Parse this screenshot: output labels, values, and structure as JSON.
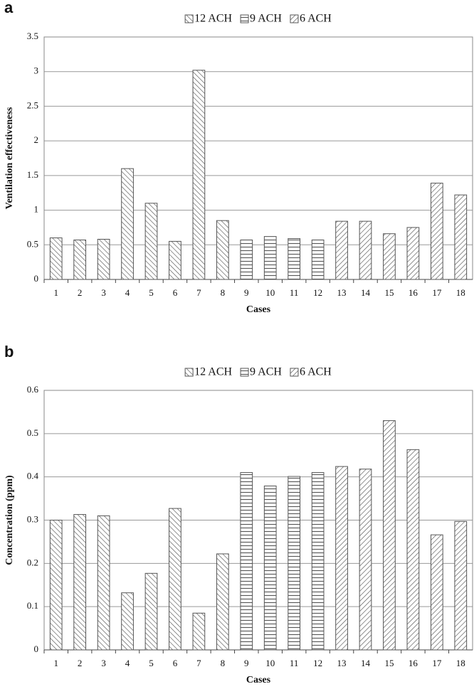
{
  "chart_data": [
    {
      "type": "bar",
      "panel_label": "a",
      "y_label": "Ventilation effectiveness",
      "x_label": "Cases",
      "categories": [
        "1",
        "2",
        "3",
        "4",
        "5",
        "6",
        "7",
        "8",
        "9",
        "10",
        "11",
        "12",
        "13",
        "14",
        "15",
        "16",
        "17",
        "18"
      ],
      "series": [
        {
          "name": "12 ACH",
          "color": "#555555",
          "hatch": "backslash",
          "values": [
            0.6,
            0.57,
            0.58,
            1.6,
            1.1,
            0.55,
            3.02,
            0.85,
            null,
            null,
            null,
            null,
            null,
            null,
            null,
            null,
            null,
            null
          ]
        },
        {
          "name": "9 ACH",
          "color": "#555555",
          "hatch": "horizontal",
          "values": [
            null,
            null,
            null,
            null,
            null,
            null,
            null,
            null,
            0.57,
            0.62,
            0.59,
            0.57,
            null,
            null,
            null,
            null,
            null,
            null
          ]
        },
        {
          "name": "6 ACH",
          "color": "#555555",
          "hatch": "slash",
          "values": [
            null,
            null,
            null,
            null,
            null,
            null,
            null,
            null,
            null,
            null,
            null,
            null,
            0.84,
            0.84,
            0.66,
            0.75,
            1.39,
            1.22
          ]
        }
      ],
      "ylim": [
        0,
        3.5
      ],
      "yticks": [
        0,
        0.5,
        1,
        1.5,
        2,
        2.5,
        3,
        3.5
      ],
      "grid": true,
      "legend": "top"
    },
    {
      "type": "bar",
      "panel_label": "b",
      "y_label": "Concentration (ppm)",
      "x_label": "Cases",
      "categories": [
        "1",
        "2",
        "3",
        "4",
        "5",
        "6",
        "7",
        "8",
        "9",
        "10",
        "11",
        "12",
        "13",
        "14",
        "15",
        "16",
        "17",
        "18"
      ],
      "series": [
        {
          "name": "12 ACH",
          "color": "#555555",
          "hatch": "backslash",
          "values": [
            0.3,
            0.313,
            0.31,
            0.132,
            0.177,
            0.327,
            0.085,
            0.222,
            null,
            null,
            null,
            null,
            null,
            null,
            null,
            null,
            null,
            null
          ]
        },
        {
          "name": "9 ACH",
          "color": "#555555",
          "hatch": "horizontal",
          "values": [
            null,
            null,
            null,
            null,
            null,
            null,
            null,
            null,
            0.41,
            0.379,
            0.401,
            0.41,
            null,
            null,
            null,
            null,
            null,
            null
          ]
        },
        {
          "name": "6 ACH",
          "color": "#555555",
          "hatch": "slash",
          "values": [
            null,
            null,
            null,
            null,
            null,
            null,
            null,
            null,
            null,
            null,
            null,
            null,
            0.424,
            0.418,
            0.53,
            0.463,
            0.266,
            0.297
          ]
        }
      ],
      "ylim": [
        0,
        0.6
      ],
      "yticks": [
        0,
        0.1,
        0.2,
        0.3,
        0.4,
        0.5,
        0.6
      ],
      "grid": true,
      "legend": "top"
    }
  ]
}
